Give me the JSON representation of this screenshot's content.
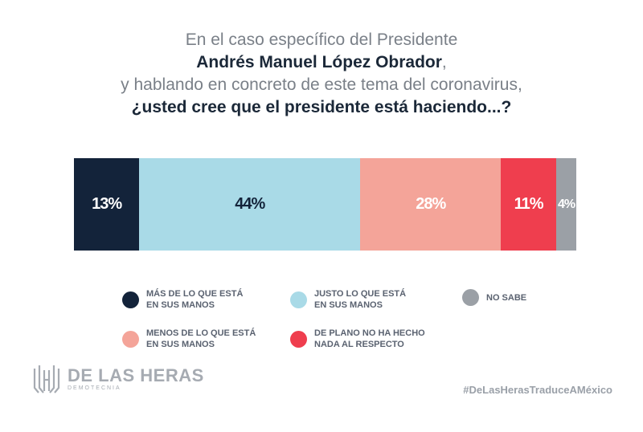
{
  "title": {
    "line1": "En el caso específico del Presidente",
    "line2": "Andrés Manuel López Obrador",
    "line2_suffix": ",",
    "line3": "y hablando en concreto de este tema del coronavirus,",
    "line4": "¿usted cree que el presidente está haciendo...?"
  },
  "chart_data": {
    "type": "bar",
    "stacked": true,
    "orientation": "horizontal",
    "series": [
      {
        "name": "MÁS DE LO QUE ESTÁ EN SUS MANOS",
        "value": 13,
        "label": "13%",
        "color": "#13233a",
        "text_color": "#ffffff"
      },
      {
        "name": "JUSTO LO QUE ESTÁ EN SUS MANOS",
        "value": 44,
        "label": "44%",
        "color": "#a9dae7",
        "text_color": "#13233a"
      },
      {
        "name": "MENOS DE LO QUE ESTÁ EN SUS MANOS",
        "value": 28,
        "label": "28%",
        "color": "#f4a499",
        "text_color": "#ffffff"
      },
      {
        "name": "DE PLANO NO HA HECHO NADA AL RESPECTO",
        "value": 11,
        "label": "11%",
        "color": "#ef3e4e",
        "text_color": "#ffffff"
      },
      {
        "name": "NO SABE",
        "value": 4,
        "label": "4%",
        "color": "#9ba0a6",
        "text_color": "#ffffff"
      }
    ]
  },
  "legend": [
    {
      "line1": "MÁS DE LO QUE ESTÁ",
      "line2": "EN SUS MANOS",
      "color": "#13233a"
    },
    {
      "line1": "JUSTO LO QUE ESTÁ",
      "line2": "EN SUS MANOS",
      "color": "#a9dae7"
    },
    {
      "line1": "NO SABE",
      "line2": "",
      "color": "#9ba0a6"
    },
    {
      "line1": "MENOS DE LO QUE ESTÁ",
      "line2": "EN SUS MANOS",
      "color": "#f4a499"
    },
    {
      "line1": "DE PLANO NO HA HECHO",
      "line2": "NADA AL RESPECTO",
      "color": "#ef3e4e"
    }
  ],
  "branding": {
    "name": "DE LAS HERAS",
    "sub": "DEMOTECNIA",
    "hashtag": "#DeLasHerasTraduceAMéxico",
    "logo_icon": "de-las-heras-logo-icon"
  }
}
